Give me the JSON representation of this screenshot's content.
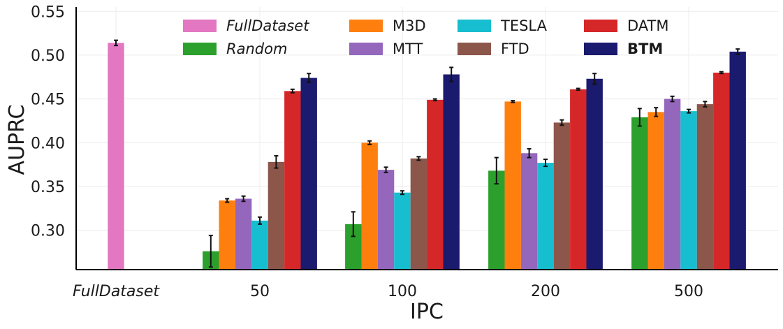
{
  "chart_data": {
    "type": "bar",
    "xlabel": "IPC",
    "ylabel": "AUPRC",
    "ylim": [
      0.255,
      0.555
    ],
    "yticks": [
      "0.30",
      "0.35",
      "0.40",
      "0.45",
      "0.50",
      "0.55"
    ],
    "grid": true,
    "legend_position": "top",
    "categories": [
      "FullDataset",
      "50",
      "100",
      "200",
      "500"
    ],
    "series": [
      {
        "name": "FullDataset",
        "color": "#e377c2",
        "italic": true,
        "bold": false,
        "values": [
          0.514,
          null,
          null,
          null,
          null
        ],
        "errors": [
          0.003,
          null,
          null,
          null,
          null
        ]
      },
      {
        "name": "Random",
        "color": "#2ca02c",
        "italic": true,
        "bold": false,
        "values": [
          null,
          0.276,
          0.307,
          0.368,
          0.429
        ],
        "errors": [
          null,
          0.018,
          0.014,
          0.015,
          0.01
        ]
      },
      {
        "name": "M3D",
        "color": "#ff7f0e",
        "italic": false,
        "bold": false,
        "values": [
          null,
          0.334,
          0.4,
          0.447,
          0.435
        ],
        "errors": [
          null,
          0.002,
          0.002,
          0.001,
          0.005
        ]
      },
      {
        "name": "MTT",
        "color": "#9467bd",
        "italic": false,
        "bold": false,
        "values": [
          null,
          0.336,
          0.369,
          0.388,
          0.45
        ],
        "errors": [
          null,
          0.003,
          0.003,
          0.005,
          0.003
        ]
      },
      {
        "name": "TESLA",
        "color": "#17becf",
        "italic": false,
        "bold": false,
        "values": [
          null,
          0.311,
          0.343,
          0.377,
          0.436
        ],
        "errors": [
          null,
          0.004,
          0.002,
          0.004,
          0.002
        ]
      },
      {
        "name": "FTD",
        "color": "#8c564b",
        "italic": false,
        "bold": false,
        "values": [
          null,
          0.378,
          0.382,
          0.423,
          0.444
        ],
        "errors": [
          null,
          0.007,
          0.002,
          0.003,
          0.003
        ]
      },
      {
        "name": "DATM",
        "color": "#d62728",
        "italic": false,
        "bold": false,
        "values": [
          null,
          0.459,
          0.449,
          0.461,
          0.48
        ],
        "errors": [
          null,
          0.002,
          0.001,
          0.001,
          0.001
        ]
      },
      {
        "name": "BTM",
        "color": "#1a1a6e",
        "italic": false,
        "bold": true,
        "values": [
          null,
          0.474,
          0.478,
          0.473,
          0.504
        ],
        "errors": [
          null,
          0.005,
          0.008,
          0.006,
          0.003
        ]
      }
    ]
  }
}
